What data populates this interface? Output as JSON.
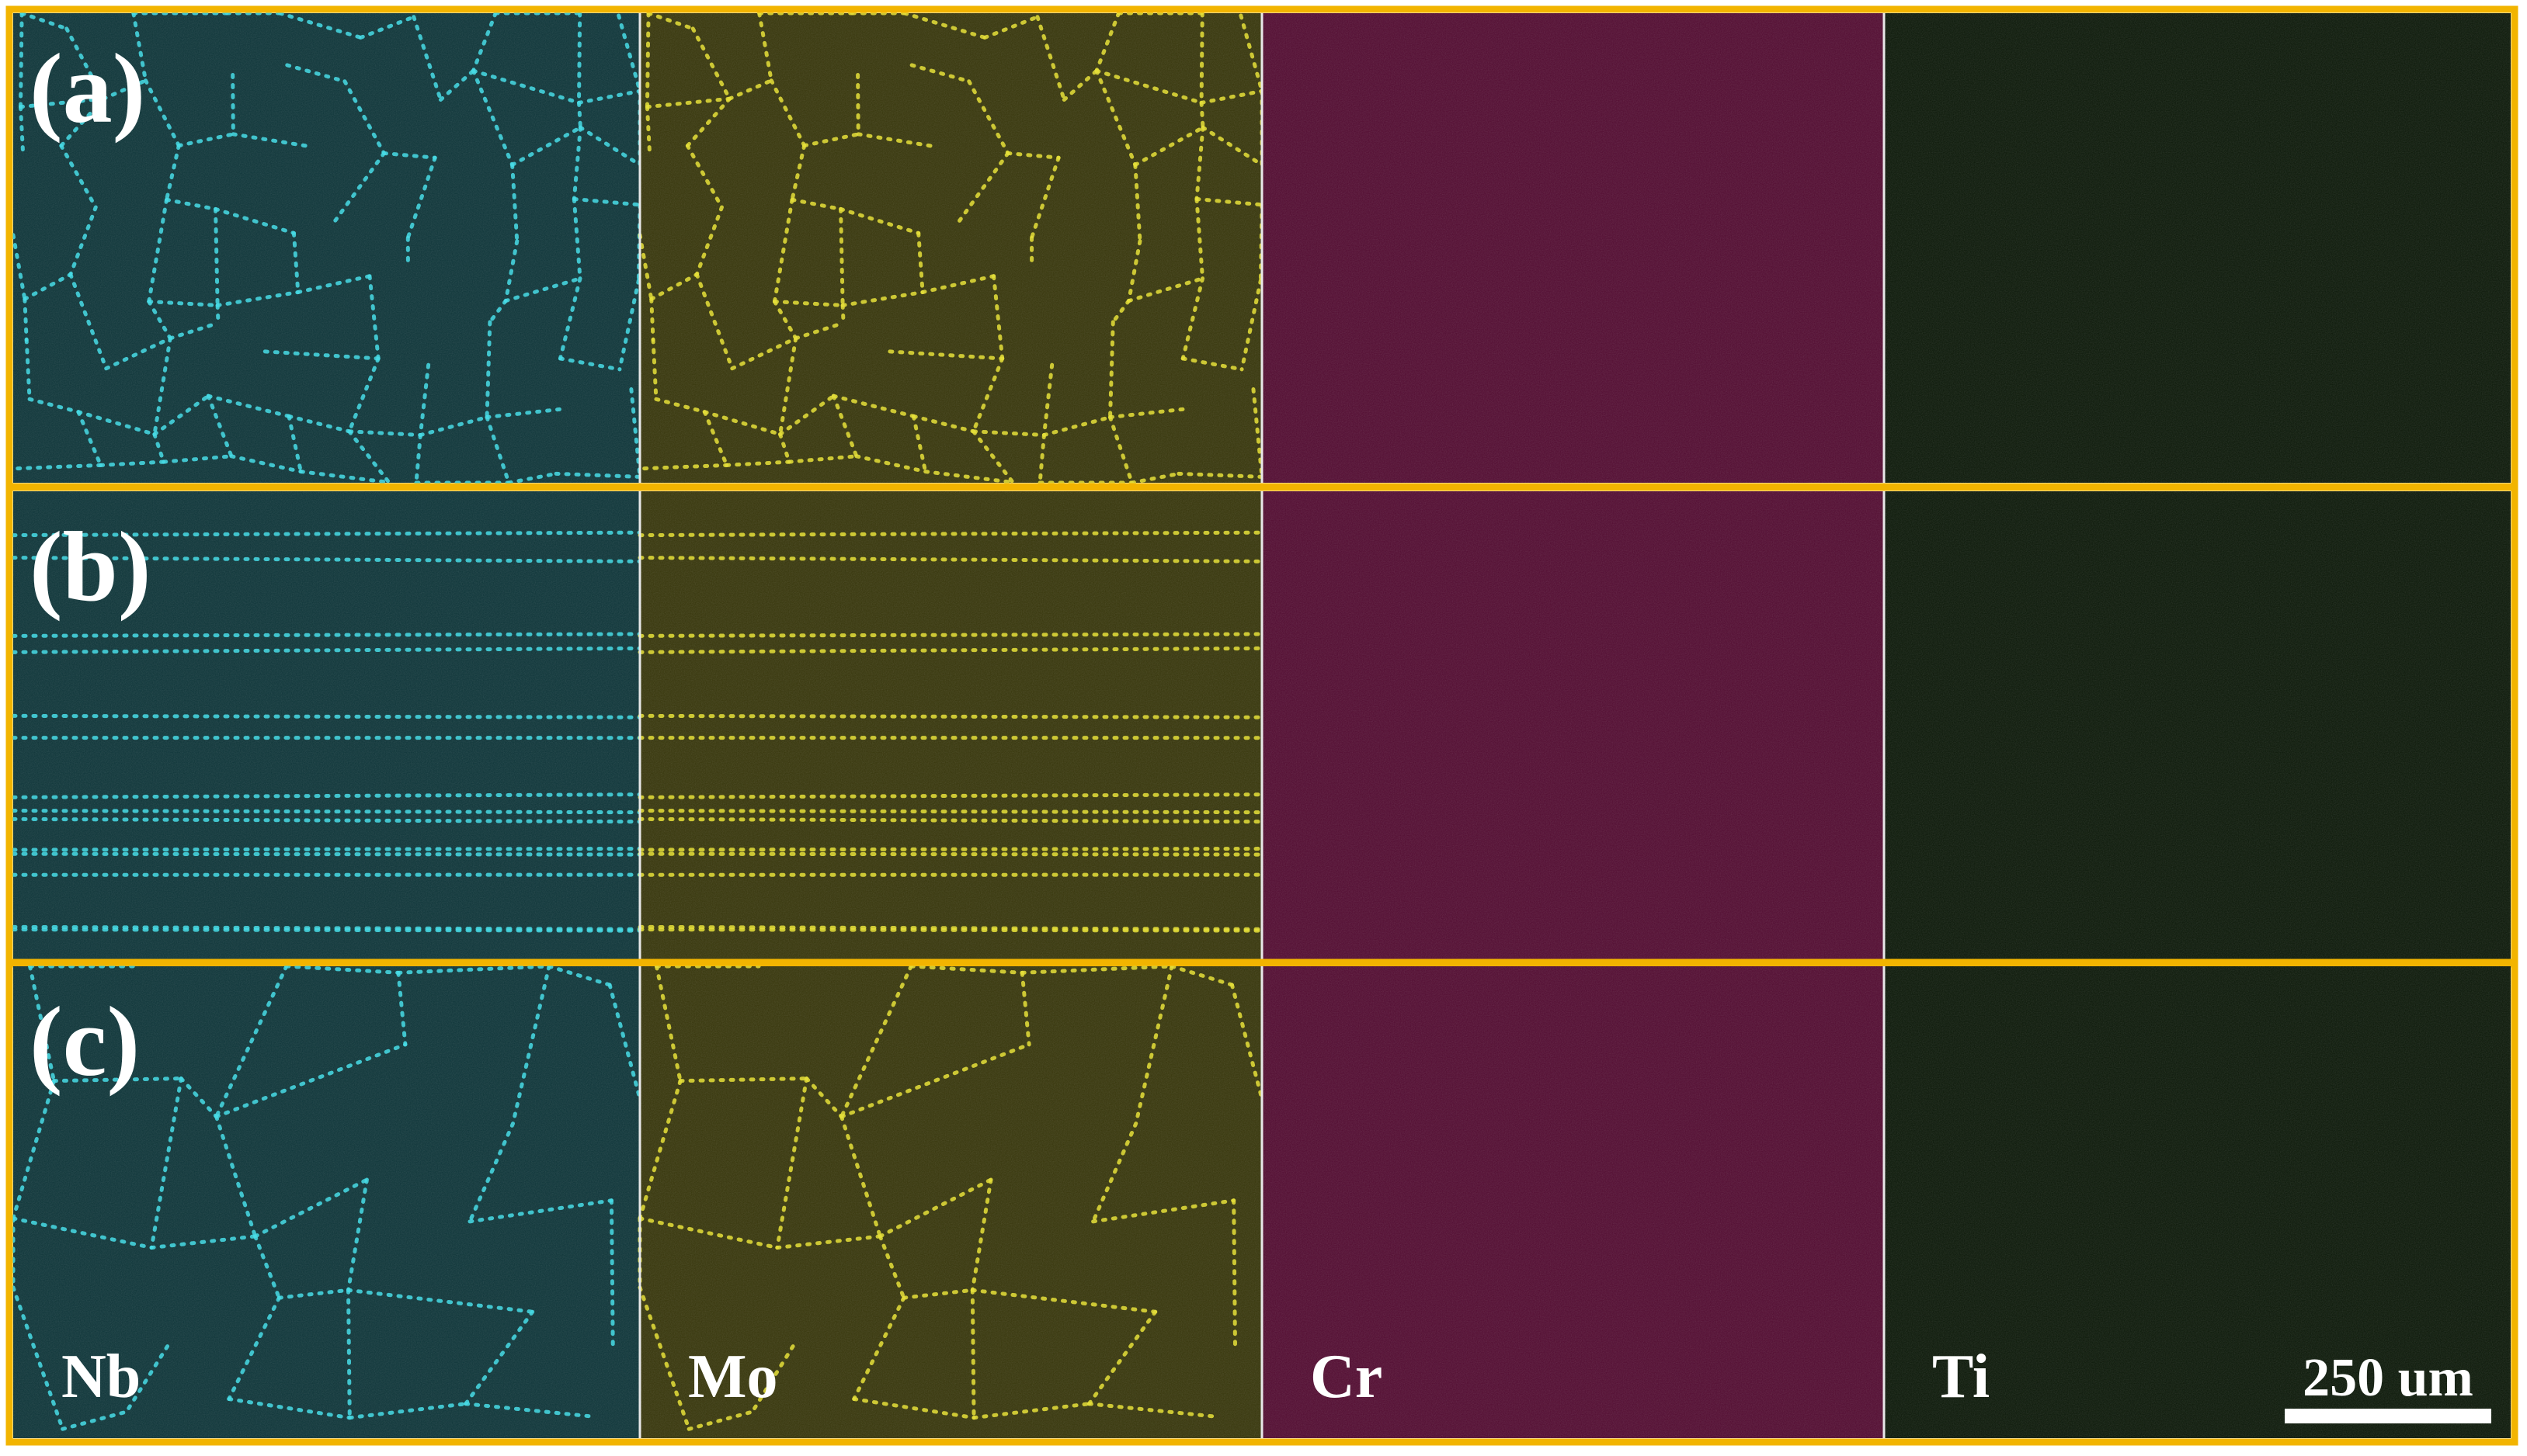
{
  "panels": [
    {
      "label": "(a)"
    },
    {
      "label": "(b)"
    },
    {
      "label": "(c)"
    }
  ],
  "elements": [
    "Nb",
    "Mo",
    "Cr",
    "Ti"
  ],
  "scale_bar": "250 um"
}
